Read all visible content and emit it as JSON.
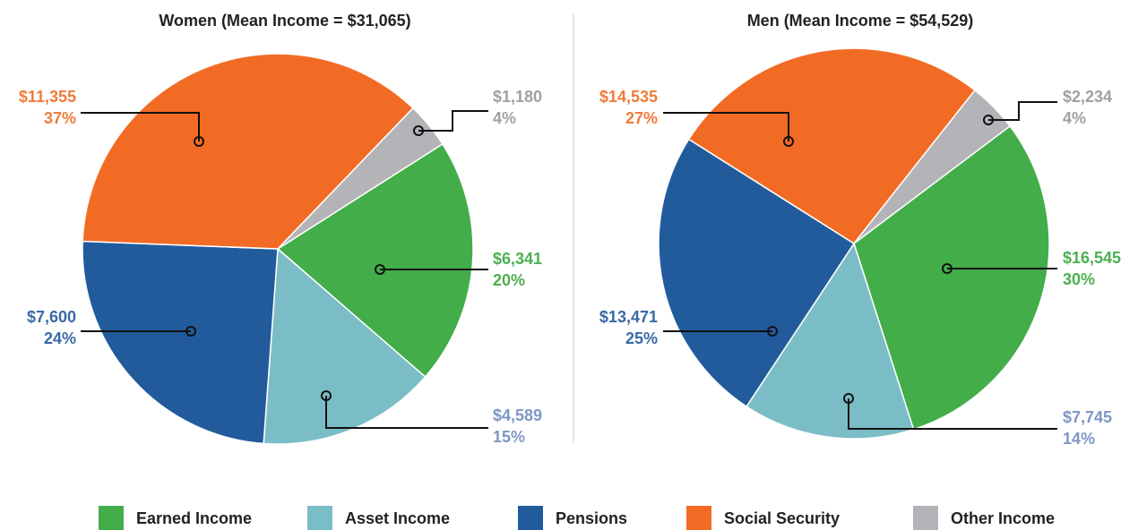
{
  "chart_data": [
    {
      "type": "pie",
      "title": "Women (Mean Income = $31,065)",
      "categories": [
        "Earned Income",
        "Asset Income",
        "Pensions",
        "Social Security",
        "Other Income"
      ],
      "values": [
        6341,
        4589,
        7600,
        11355,
        1180
      ],
      "value_labels": [
        "$6,341",
        "$4,589",
        "$7,600",
        "$11,355",
        "$1,180"
      ],
      "shares": [
        20,
        15,
        24,
        37,
        4
      ],
      "share_labels": [
        "20%",
        "15%",
        "24%",
        "37%",
        "4%"
      ],
      "colors": [
        "#43ad49",
        "#7bbdc6",
        "#225b9c",
        "#f26b25",
        "#b3b3b8"
      ],
      "label_colors": [
        "#4caf50",
        "#7d97c4",
        "#3b69a6",
        "#f07b3a",
        "#a0a0a0"
      ],
      "legend": "bottom"
    },
    {
      "type": "pie",
      "title": "Men (Mean Income = $54,529)",
      "categories": [
        "Earned Income",
        "Asset Income",
        "Pensions",
        "Social Security",
        "Other Income"
      ],
      "values": [
        16545,
        7745,
        13471,
        14535,
        2234
      ],
      "value_labels": [
        "$16,545",
        "$7,745",
        "$13,471",
        "$14,535",
        "$2,234"
      ],
      "shares": [
        30,
        14,
        25,
        27,
        4
      ],
      "share_labels": [
        "30%",
        "14%",
        "25%",
        "27%",
        "4%"
      ],
      "colors": [
        "#43ad49",
        "#7bbdc6",
        "#225b9c",
        "#f26b25",
        "#b3b3b8"
      ],
      "label_colors": [
        "#4caf50",
        "#7d97c4",
        "#3b69a6",
        "#f07b3a",
        "#a0a0a0"
      ],
      "legend": "bottom"
    }
  ]
}
